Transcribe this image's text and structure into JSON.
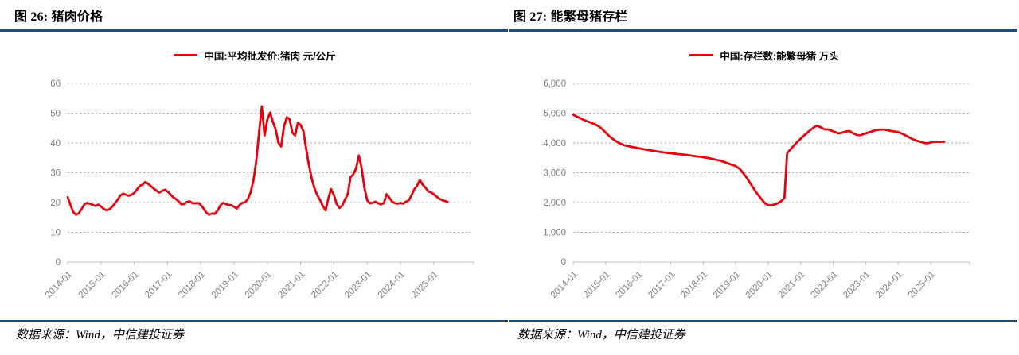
{
  "colors": {
    "rule_navy": "#1B4E78",
    "series_red": "#E8000D",
    "grid_gray": "#A9A9A9",
    "axis_line_gray": "#BFBFBF",
    "axis_text_gray": "#7F7F7F"
  },
  "panels": [
    {
      "figure_label": "图 26: 猪肉价格",
      "legend_label": "中国:平均批发价:猪肉 元/公斤",
      "source_note": "数据来源：Wind，中信建投证券"
    },
    {
      "figure_label": "图 27: 能繁母猪存栏",
      "legend_label": "中国:存栏数:能繁母猪 万头",
      "source_note": "数据来源：Wind，中信建投证券"
    }
  ],
  "chart_data": [
    {
      "type": "line",
      "title": "图 26: 猪肉价格",
      "legend_position": "top-center",
      "grid": "horizontal-dashed",
      "line_color": "#E8000D",
      "x_unit": "month",
      "x_range": [
        "2014-01",
        "2025-06"
      ],
      "x_tick_labels": [
        "2014-01",
        "2015-01",
        "2016-01",
        "2017-01",
        "2018-01",
        "2019-01",
        "2020-01",
        "2021-01",
        "2022-01",
        "2023-01",
        "2024-01",
        "2025-01"
      ],
      "ylim": [
        0,
        60
      ],
      "yticks": [
        0,
        10,
        20,
        30,
        40,
        50,
        60
      ],
      "ytick_labels": [
        "0",
        "10",
        "20",
        "30",
        "40",
        "50",
        "60"
      ],
      "series": [
        {
          "name": "中国:平均批发价:猪肉 元/公斤",
          "values": [
            21.8,
            19.2,
            16.8,
            15.9,
            16.4,
            17.8,
            19.3,
            19.9,
            19.6,
            19.2,
            18.9,
            19.3,
            18.7,
            17.9,
            17.4,
            17.7,
            18.5,
            19.7,
            20.9,
            22.4,
            23.0,
            22.6,
            22.3,
            22.6,
            23.2,
            24.4,
            25.6,
            26.0,
            26.9,
            26.3,
            25.5,
            24.7,
            24.0,
            23.3,
            23.9,
            24.3,
            23.7,
            22.8,
            21.8,
            21.2,
            20.4,
            19.4,
            19.5,
            20.2,
            20.4,
            19.8,
            19.7,
            19.9,
            19.2,
            18.0,
            16.6,
            15.9,
            16.3,
            16.2,
            17.2,
            18.9,
            19.9,
            19.5,
            19.2,
            19.1,
            18.6,
            18.0,
            19.2,
            19.9,
            20.1,
            21.2,
            23.5,
            27.5,
            34.0,
            43.5,
            52.3,
            42.5,
            47.8,
            50.2,
            47.0,
            44.5,
            40.0,
            38.8,
            45.5,
            48.6,
            48.0,
            43.5,
            42.5,
            46.8,
            46.0,
            44.0,
            38.0,
            32.5,
            28.0,
            24.8,
            22.5,
            20.8,
            18.8,
            17.4,
            21.5,
            24.5,
            22.5,
            19.5,
            18.2,
            19.0,
            21.0,
            22.8,
            28.5,
            29.5,
            31.5,
            35.8,
            31.5,
            25.0,
            20.8,
            19.8,
            19.9,
            20.3,
            19.7,
            19.4,
            19.8,
            22.8,
            21.6,
            20.3,
            19.8,
            19.6,
            19.9,
            19.6,
            20.3,
            20.7,
            22.5,
            24.5,
            25.6,
            27.6,
            26.0,
            25.0,
            23.8,
            23.4,
            22.8,
            22.0,
            21.3,
            20.8,
            20.5,
            20.2
          ]
        }
      ]
    },
    {
      "type": "line",
      "title": "图 27: 能繁母猪存栏",
      "legend_position": "top-center",
      "grid": "horizontal-dashed",
      "line_color": "#E8000D",
      "x_unit": "month",
      "x_range": [
        "2014-01",
        "2025-06"
      ],
      "x_tick_labels": [
        "2014-01",
        "2015-01",
        "2016-01",
        "2017-01",
        "2018-01",
        "2019-01",
        "2020-01",
        "2021-01",
        "2022-01",
        "2023-01",
        "2024-01",
        "2025-01"
      ],
      "ylim": [
        0,
        6000
      ],
      "yticks": [
        0,
        1000,
        2000,
        3000,
        4000,
        5000,
        6000
      ],
      "ytick_labels": [
        "0",
        "1,000",
        "2,000",
        "3,000",
        "4,000",
        "5,000",
        "6,000"
      ],
      "series": [
        {
          "name": "中国:存栏数:能繁母猪 万头",
          "values": [
            4950,
            4900,
            4855,
            4810,
            4770,
            4730,
            4700,
            4665,
            4630,
            4580,
            4520,
            4440,
            4350,
            4260,
            4180,
            4110,
            4045,
            3995,
            3955,
            3920,
            3900,
            3880,
            3860,
            3845,
            3825,
            3805,
            3790,
            3775,
            3760,
            3745,
            3730,
            3715,
            3700,
            3690,
            3675,
            3665,
            3655,
            3645,
            3635,
            3625,
            3615,
            3605,
            3595,
            3585,
            3570,
            3555,
            3545,
            3535,
            3520,
            3505,
            3490,
            3470,
            3450,
            3430,
            3410,
            3385,
            3355,
            3320,
            3285,
            3255,
            3225,
            3160,
            3080,
            2960,
            2840,
            2700,
            2560,
            2420,
            2290,
            2180,
            2060,
            1960,
            1915,
            1908,
            1925,
            1955,
            2000,
            2060,
            2150,
            3650,
            3760,
            3860,
            3960,
            4060,
            4140,
            4230,
            4310,
            4390,
            4460,
            4530,
            4580,
            4545,
            4490,
            4450,
            4455,
            4425,
            4390,
            4355,
            4320,
            4340,
            4365,
            4390,
            4400,
            4345,
            4295,
            4265,
            4255,
            4290,
            4320,
            4350,
            4380,
            4410,
            4430,
            4445,
            4450,
            4445,
            4430,
            4410,
            4395,
            4380,
            4365,
            4330,
            4290,
            4240,
            4190,
            4145,
            4105,
            4070,
            4045,
            4020,
            3995,
            3990,
            4020,
            4035,
            4045,
            4040,
            4040,
            4040
          ]
        }
      ]
    }
  ]
}
